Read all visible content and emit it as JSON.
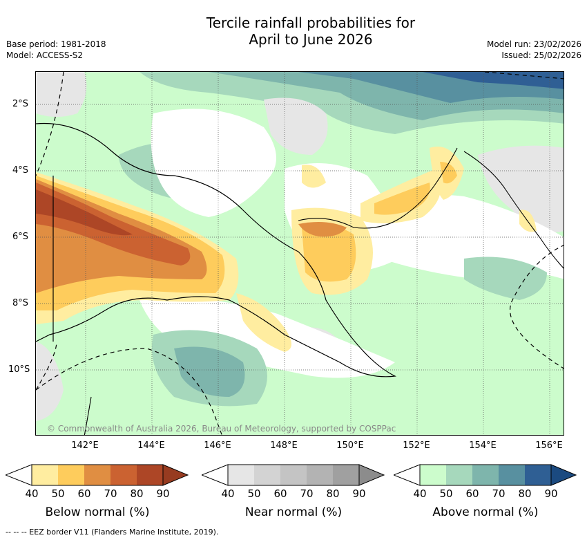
{
  "title": {
    "line1": "Tercile rainfall probabilities for",
    "line2": "April to June 2026"
  },
  "meta_left": {
    "base_period": "Base period: 1981-2018",
    "model": "Model: ACCESS-S2"
  },
  "meta_right": {
    "model_run": "Model run: 23/02/2026",
    "issued": "Issued: 25/02/2026"
  },
  "axes": {
    "lat_labels": [
      "2°S",
      "4°S",
      "6°S",
      "8°S",
      "10°S"
    ],
    "lon_labels": [
      "142°E",
      "144°E",
      "146°E",
      "148°E",
      "150°E",
      "152°E",
      "154°E",
      "156°E"
    ]
  },
  "copyright": "© Commonwealth of Australia 2026, Bureau of Meteorology, supported by COSPPac",
  "legends": [
    {
      "label": "Below normal (%)",
      "ticks": [
        "40",
        "50",
        "60",
        "70",
        "80",
        "90"
      ],
      "colors": [
        "#ffeda0",
        "#fecc5c",
        "#e08e42",
        "#cb6231",
        "#ad4626",
        "#973b20"
      ]
    },
    {
      "label": "Near normal (%)",
      "ticks": [
        "40",
        "50",
        "60",
        "70",
        "80",
        "90"
      ],
      "colors": [
        "#e6e6e6",
        "#d3d3d3",
        "#c4c4c4",
        "#b3b3b3",
        "#a0a0a0",
        "#8c8c8c"
      ]
    },
    {
      "label": "Above normal (%)",
      "ticks": [
        "40",
        "50",
        "60",
        "70",
        "80",
        "90"
      ],
      "colors": [
        "#ccfccc",
        "#a6d8bc",
        "#7eb5ac",
        "#5890a0",
        "#2f5f94",
        "#1b4a80"
      ]
    }
  ],
  "footnote": "--  --  -- EEZ border V11 (Flanders Marine Institute, 2019)."
}
